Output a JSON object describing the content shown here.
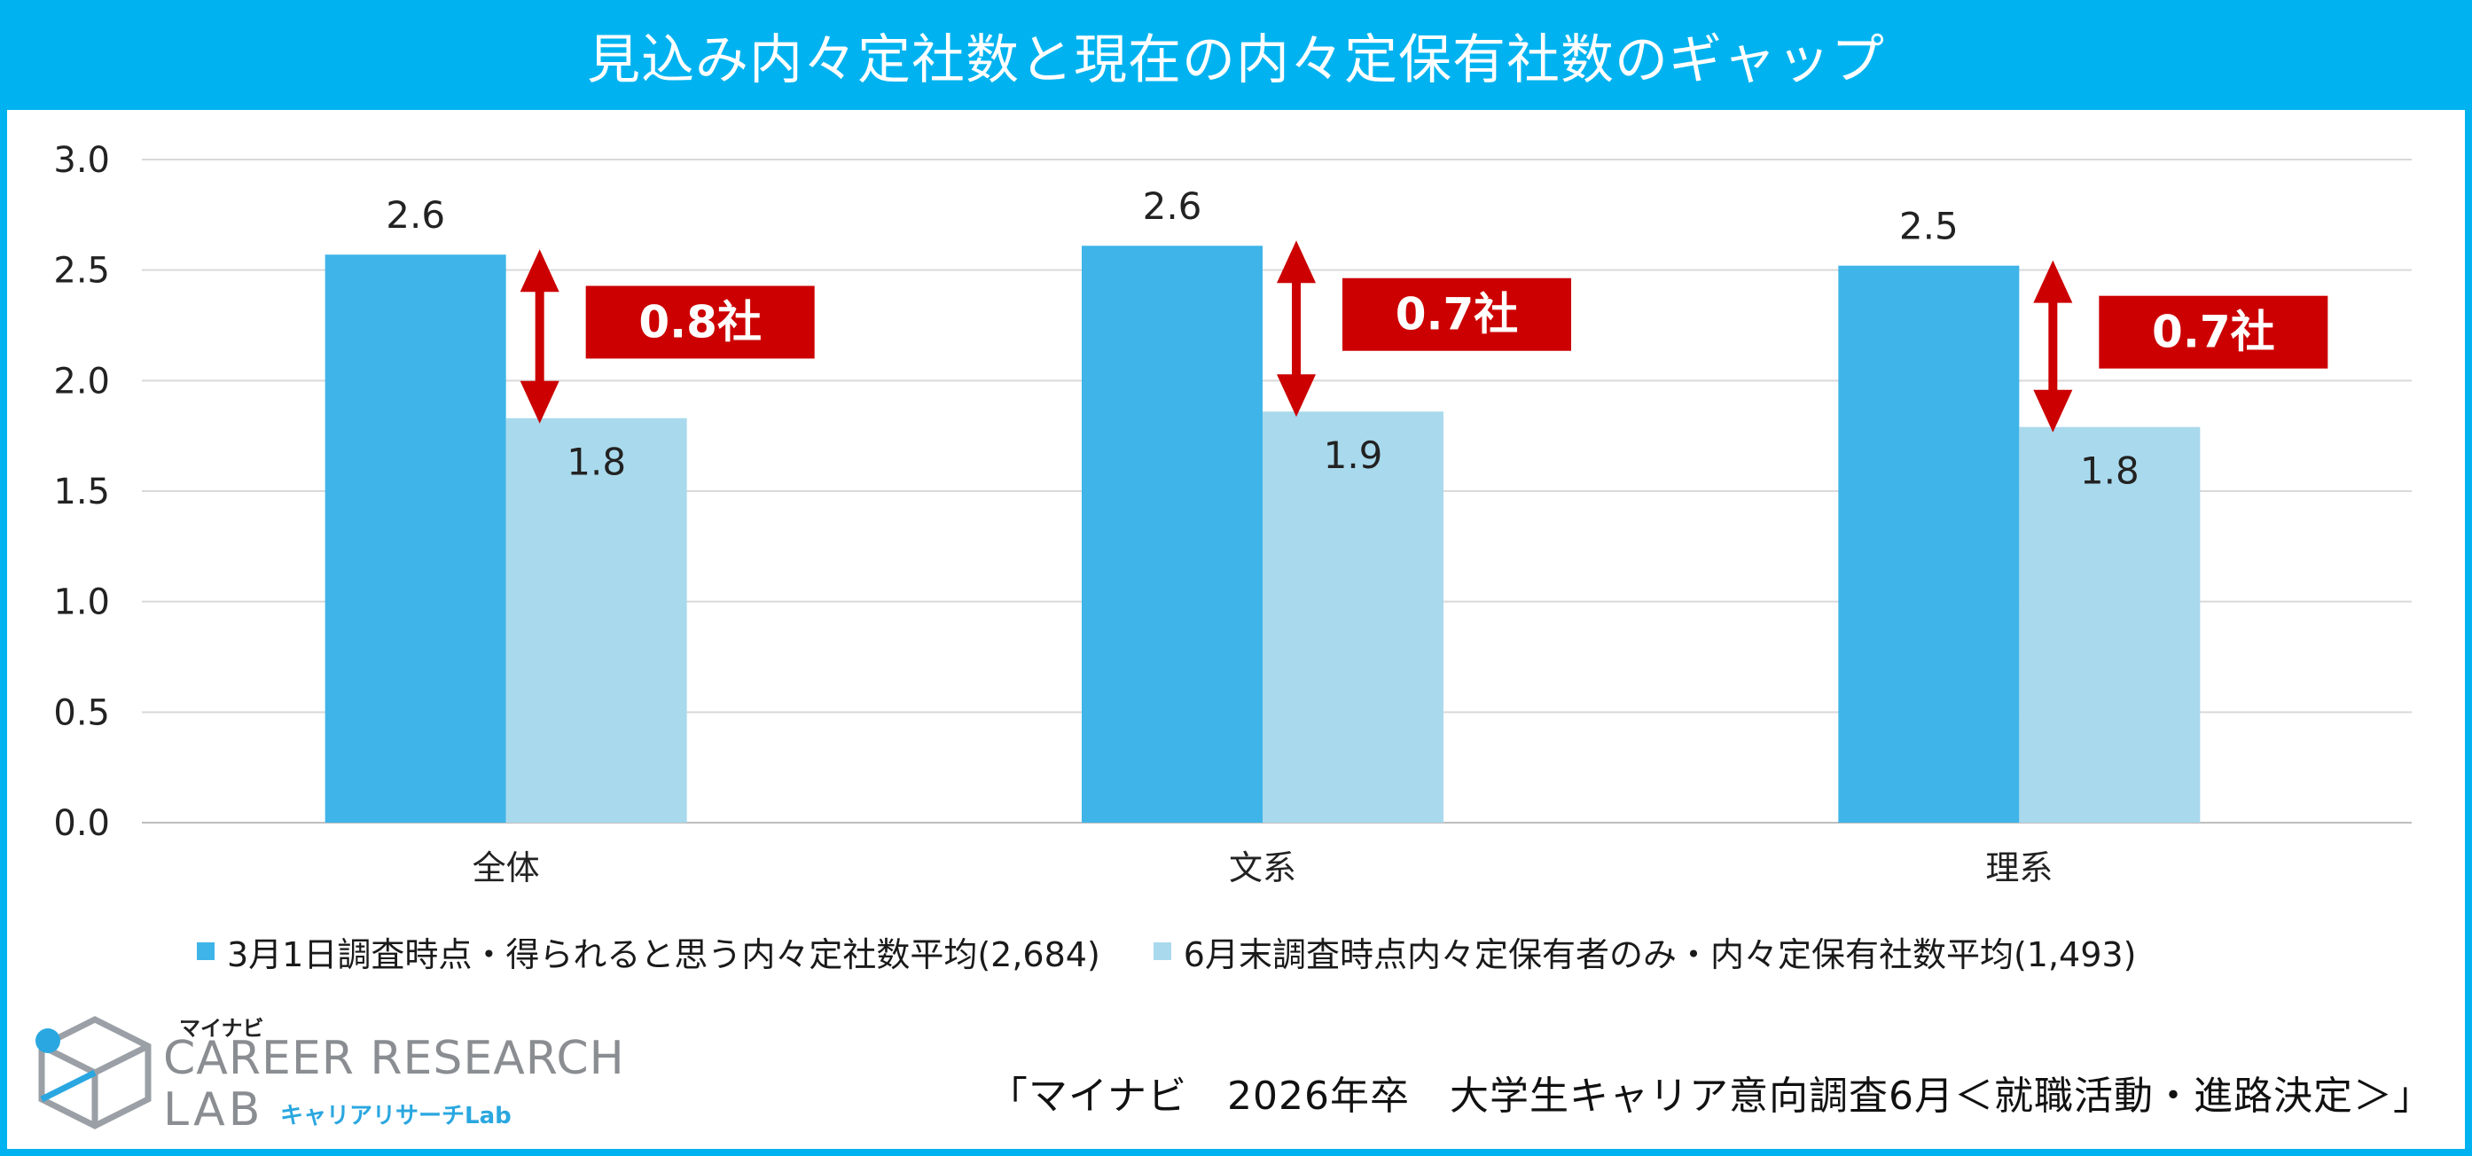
{
  "title": "見込み内々定社数と現在の内々定保有社数のギャップ",
  "chart_data": {
    "type": "bar",
    "categories": [
      "全体",
      "文系",
      "理系"
    ],
    "series": [
      {
        "name": "3月1日調査時点・得られると思う内々定社数平均(2,684)",
        "values": [
          2.6,
          2.6,
          2.5
        ],
        "labels": [
          "2.6",
          "2.6",
          "2.5"
        ],
        "color": "#3fb4e8"
      },
      {
        "name": "6月末調査時点内々定保有者のみ・内々定保有社数平均(1,493)",
        "values": [
          1.8,
          1.9,
          1.8
        ],
        "labels": [
          "1.8",
          "1.9",
          "1.8"
        ],
        "color": "#a9d9ec"
      }
    ],
    "bar_heights": {
      "s1": [
        2.57,
        2.61,
        2.52
      ],
      "s2": [
        1.83,
        1.86,
        1.79
      ]
    },
    "gaps": [
      "0.8社",
      "0.7社",
      "0.7社"
    ],
    "ylim": [
      0,
      3.0
    ],
    "yticks": [
      "0.0",
      "0.5",
      "1.0",
      "1.5",
      "2.0",
      "2.5",
      "3.0"
    ],
    "grid": true,
    "legend_position": "bottom",
    "gap_color": "#cc0000"
  },
  "source": "「マイナビ　2026年卒　大学生キャリア意向調査6月＜就職活動・進路決定＞」",
  "logo": {
    "kana": "マイナビ",
    "line1": "CAREER RESEARCH",
    "line2": "LAB",
    "sub": "キャリアリサーチLab"
  },
  "colors": {
    "banner": "#00b3f0",
    "grid": "#d9d9d9"
  }
}
